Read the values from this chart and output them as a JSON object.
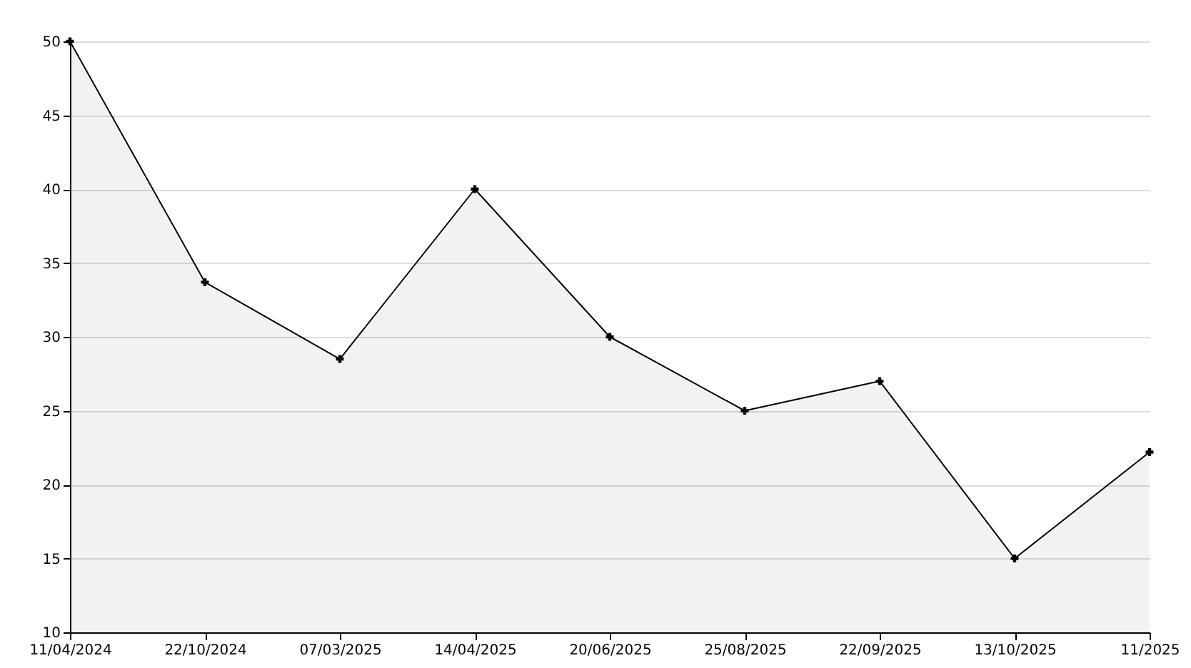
{
  "chart_data": {
    "type": "area",
    "categories": [
      "11/04/2024",
      "22/10/2024",
      "07/03/2025",
      "14/04/2025",
      "20/06/2025",
      "25/08/2025",
      "22/09/2025",
      "13/10/2025",
      "11/2025"
    ],
    "series": [
      {
        "color": "#000000",
        "values": [
          50,
          33.7,
          28.5,
          40,
          30,
          25,
          27,
          15,
          22.2
        ]
      }
    ],
    "ylim": [
      10,
      50
    ],
    "yticks": [
      10,
      15,
      20,
      25,
      30,
      35,
      40,
      45,
      50
    ],
    "grid": "y",
    "marker": "cross",
    "line_style": "solid"
  }
}
